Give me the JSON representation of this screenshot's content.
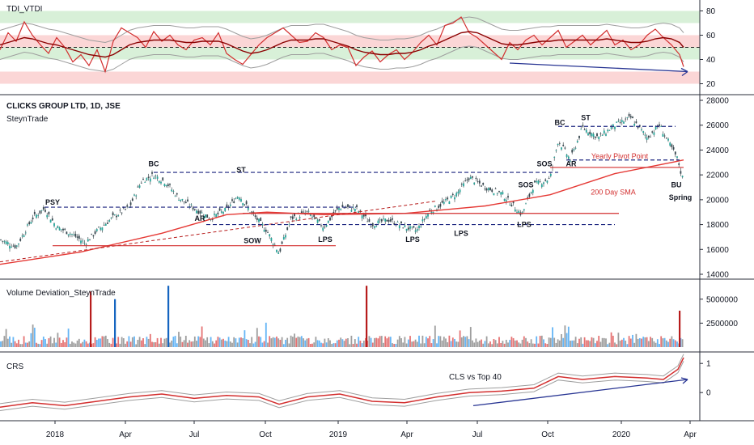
{
  "header": {
    "symbol_title": "CLICKS GROUP LTD, 1D, JSE",
    "author": "SteynTrade"
  },
  "chart_data": [
    {
      "type": "line",
      "title": "TDI_VTDI",
      "y_ticks": [
        "80",
        "60",
        "40",
        "20"
      ],
      "ylim": [
        15,
        85
      ],
      "bands": [
        {
          "range": [
            70,
            80
          ],
          "color": "#d8f0d8"
        },
        {
          "range": [
            50,
            60
          ],
          "color": "#fbd6d6"
        },
        {
          "range": [
            40,
            50
          ],
          "color": "#d8f0d8"
        },
        {
          "range": [
            20,
            30
          ],
          "color": "#fbd6d6"
        }
      ],
      "x": [
        0,
        10,
        20,
        30,
        40,
        50,
        60,
        70,
        80,
        90,
        100,
        110,
        120,
        130,
        140,
        150,
        160,
        170,
        180,
        190,
        200,
        210,
        220,
        230,
        240,
        250,
        260,
        270,
        280,
        290,
        300,
        310,
        320,
        330,
        340,
        350,
        360,
        370,
        380,
        390,
        400,
        410,
        420,
        430,
        440,
        450,
        460,
        470,
        480,
        490,
        500,
        510,
        520,
        530,
        540,
        550,
        560,
        570,
        580,
        590,
        600,
        610,
        620,
        630,
        640,
        650,
        660,
        670,
        680,
        690,
        700,
        710,
        720,
        730,
        740,
        750,
        760,
        770,
        780,
        790,
        800,
        810,
        820,
        830,
        840,
        845
      ],
      "series": [
        {
          "name": "rsi",
          "color": "#d32f2f",
          "values": [
            48,
            62,
            55,
            71,
            60,
            52,
            45,
            58,
            50,
            38,
            44,
            35,
            48,
            30,
            55,
            66,
            62,
            58,
            50,
            63,
            55,
            60,
            52,
            48,
            56,
            58,
            52,
            62,
            45,
            40,
            36,
            44,
            52,
            58,
            62,
            66,
            60,
            54,
            55,
            62,
            58,
            48,
            52,
            50,
            35,
            42,
            47,
            38,
            44,
            48,
            40,
            46,
            54,
            60,
            52,
            68,
            70,
            75,
            62,
            58,
            52,
            46,
            40,
            54,
            48,
            56,
            60,
            52,
            58,
            64,
            50,
            55,
            60,
            52,
            58,
            64,
            52,
            56,
            48,
            52,
            60,
            65,
            58,
            52,
            44,
            34
          ]
        },
        {
          "name": "signal",
          "color": "#8b0000",
          "values": [
            52,
            54,
            56,
            58,
            57,
            55,
            53,
            52,
            50,
            48,
            46,
            44,
            43,
            42,
            44,
            48,
            52,
            54,
            55,
            56,
            56,
            56,
            55,
            54,
            54,
            55,
            55,
            55,
            53,
            50,
            47,
            45,
            46,
            48,
            51,
            54,
            56,
            56,
            56,
            57,
            57,
            55,
            53,
            51,
            48,
            46,
            45,
            44,
            44,
            45,
            45,
            46,
            48,
            51,
            53,
            56,
            59,
            62,
            63,
            62,
            59,
            56,
            53,
            52,
            52,
            53,
            54,
            55,
            55,
            56,
            56,
            56,
            56,
            56,
            56,
            57,
            56,
            55,
            54,
            54,
            55,
            57,
            58,
            57,
            54,
            50
          ]
        }
      ],
      "divergence_arrow": {
        "from": [
          630,
          37
        ],
        "to": [
          850,
          30
        ]
      }
    },
    {
      "type": "candlestick",
      "title": "CLICKS GROUP LTD, 1D, JSE",
      "y_ticks": [
        "28000",
        "26000",
        "24000",
        "22000",
        "20000",
        "18000",
        "16000",
        "14000"
      ],
      "ylim": [
        14000,
        28000
      ],
      "close": [
        {
          "x": 0,
          "y": 16800
        },
        {
          "x": 20,
          "y": 16200
        },
        {
          "x": 40,
          "y": 18500
        },
        {
          "x": 55,
          "y": 19300
        },
        {
          "x": 70,
          "y": 17800
        },
        {
          "x": 90,
          "y": 17200
        },
        {
          "x": 105,
          "y": 16500
        },
        {
          "x": 120,
          "y": 17500
        },
        {
          "x": 140,
          "y": 18600
        },
        {
          "x": 160,
          "y": 19400
        },
        {
          "x": 175,
          "y": 21500
        },
        {
          "x": 190,
          "y": 22000
        },
        {
          "x": 205,
          "y": 21400
        },
        {
          "x": 220,
          "y": 20200
        },
        {
          "x": 240,
          "y": 19300
        },
        {
          "x": 260,
          "y": 18500
        },
        {
          "x": 280,
          "y": 19200
        },
        {
          "x": 295,
          "y": 20400
        },
        {
          "x": 310,
          "y": 19000
        },
        {
          "x": 330,
          "y": 17500
        },
        {
          "x": 345,
          "y": 15700
        },
        {
          "x": 360,
          "y": 18500
        },
        {
          "x": 380,
          "y": 19000
        },
        {
          "x": 400,
          "y": 17800
        },
        {
          "x": 420,
          "y": 19400
        },
        {
          "x": 440,
          "y": 19300
        },
        {
          "x": 460,
          "y": 18000
        },
        {
          "x": 480,
          "y": 18400
        },
        {
          "x": 500,
          "y": 17800
        },
        {
          "x": 515,
          "y": 17500
        },
        {
          "x": 530,
          "y": 19000
        },
        {
          "x": 550,
          "y": 19800
        },
        {
          "x": 565,
          "y": 20500
        },
        {
          "x": 580,
          "y": 21800
        },
        {
          "x": 600,
          "y": 21000
        },
        {
          "x": 620,
          "y": 20500
        },
        {
          "x": 645,
          "y": 18800
        },
        {
          "x": 660,
          "y": 21200
        },
        {
          "x": 680,
          "y": 21700
        },
        {
          "x": 690,
          "y": 24800
        },
        {
          "x": 705,
          "y": 23200
        },
        {
          "x": 720,
          "y": 25800
        },
        {
          "x": 740,
          "y": 25000
        },
        {
          "x": 760,
          "y": 26000
        },
        {
          "x": 780,
          "y": 26600
        },
        {
          "x": 800,
          "y": 25000
        },
        {
          "x": 815,
          "y": 26000
        },
        {
          "x": 830,
          "y": 24200
        },
        {
          "x": 838,
          "y": 23200
        },
        {
          "x": 843,
          "y": 21800
        }
      ],
      "sma200": [
        {
          "x": 0,
          "y": 14800
        },
        {
          "x": 100,
          "y": 15800
        },
        {
          "x": 200,
          "y": 17300
        },
        {
          "x": 280,
          "y": 18800
        },
        {
          "x": 330,
          "y": 19000
        },
        {
          "x": 400,
          "y": 18800
        },
        {
          "x": 500,
          "y": 18900
        },
        {
          "x": 600,
          "y": 19500
        },
        {
          "x": 680,
          "y": 20400
        },
        {
          "x": 760,
          "y": 22100
        },
        {
          "x": 830,
          "y": 23000
        },
        {
          "x": 845,
          "y": 23200
        }
      ],
      "dashed_trend": [
        {
          "x": 0,
          "y": 15000
        },
        {
          "x": 540,
          "y": 19900
        }
      ],
      "hlines": [
        {
          "y": 22200,
          "x1": 190,
          "x2": 690,
          "style": "dashed",
          "color": "#1a237e"
        },
        {
          "y": 19400,
          "x1": 55,
          "x2": 440,
          "style": "dashed",
          "color": "#1a237e"
        },
        {
          "y": 18000,
          "x1": 255,
          "x2": 760,
          "style": "dashed",
          "color": "#1a237e"
        },
        {
          "y": 16300,
          "x1": 65,
          "x2": 415,
          "style": "solid",
          "color": "#d32f2f"
        },
        {
          "y": 18900,
          "x1": 300,
          "x2": 765,
          "style": "solid",
          "color": "#d32f2f"
        },
        {
          "y": 25900,
          "x1": 690,
          "x2": 835,
          "style": "dashed",
          "color": "#1a237e"
        },
        {
          "y": 23200,
          "x1": 700,
          "x2": 840,
          "style": "dashed",
          "color": "#1a237e"
        },
        {
          "y": 22600,
          "x1": 680,
          "x2": 845,
          "style": "solid",
          "color": "#d32f2f"
        }
      ],
      "annotations": [
        {
          "text": "PSY",
          "x": 65,
          "y": 19600,
          "color": "#131722"
        },
        {
          "text": "BC",
          "x": 190,
          "y": 22700,
          "color": "#131722"
        },
        {
          "text": "ST",
          "x": 298,
          "y": 22200,
          "color": "#131722"
        },
        {
          "text": "AR",
          "x": 247,
          "y": 18300,
          "color": "#131722"
        },
        {
          "text": "SOW",
          "x": 312,
          "y": 16500,
          "color": "#131722"
        },
        {
          "text": "LPS",
          "x": 402,
          "y": 16600,
          "color": "#131722"
        },
        {
          "text": "LPS",
          "x": 510,
          "y": 16600,
          "color": "#131722"
        },
        {
          "text": "LPS",
          "x": 570,
          "y": 17100,
          "color": "#131722"
        },
        {
          "text": "LPS",
          "x": 648,
          "y": 17800,
          "color": "#131722"
        },
        {
          "text": "SOS",
          "x": 650,
          "y": 21000,
          "color": "#131722"
        },
        {
          "text": "SOS",
          "x": 673,
          "y": 22700,
          "color": "#131722"
        },
        {
          "text": "BC",
          "x": 692,
          "y": 26000,
          "color": "#131722"
        },
        {
          "text": "ST",
          "x": 724,
          "y": 26400,
          "color": "#131722"
        },
        {
          "text": "AR",
          "x": 706,
          "y": 22700,
          "color": "#131722"
        },
        {
          "text": "Yearly Pivot Point",
          "x": 766,
          "y": 23300,
          "color": "#d32f2f"
        },
        {
          "text": "200 Day SMA",
          "x": 758,
          "y": 20400,
          "color": "#d32f2f"
        },
        {
          "text": "BU",
          "x": 836,
          "y": 21000,
          "color": "#131722"
        },
        {
          "text": "Spring",
          "x": 841,
          "y": 20000,
          "color": "#131722"
        }
      ]
    },
    {
      "type": "bar",
      "title": "Volume Deviation_SteynTrade",
      "y_ticks": [
        "5000000",
        "2500000"
      ],
      "ylim": [
        0,
        6500000
      ],
      "spikes": [
        {
          "x": 112,
          "value": 5800000,
          "color": "#b71c1c"
        },
        {
          "x": 142,
          "value": 5000000,
          "color": "#1565c0"
        },
        {
          "x": 208,
          "value": 6400000,
          "color": "#1565c0"
        },
        {
          "x": 453,
          "value": 6400000,
          "color": "#b71c1c"
        },
        {
          "x": 840,
          "value": 3800000,
          "color": "#b71c1c"
        }
      ]
    },
    {
      "type": "line",
      "title": "CRS",
      "y_ticks": [
        "1",
        "0"
      ],
      "ylim": [
        -0.8,
        1.2
      ],
      "series": [
        {
          "name": "crs",
          "color": "#d32f2f",
          "values": [
            {
              "x": 0,
              "y": -0.5
            },
            {
              "x": 40,
              "y": -0.35
            },
            {
              "x": 80,
              "y": -0.45
            },
            {
              "x": 120,
              "y": -0.3
            },
            {
              "x": 160,
              "y": -0.15
            },
            {
              "x": 200,
              "y": -0.05
            },
            {
              "x": 240,
              "y": -0.2
            },
            {
              "x": 280,
              "y": -0.1
            },
            {
              "x": 320,
              "y": -0.15
            },
            {
              "x": 345,
              "y": -0.4
            },
            {
              "x": 380,
              "y": -0.15
            },
            {
              "x": 420,
              "y": -0.05
            },
            {
              "x": 460,
              "y": -0.3
            },
            {
              "x": 500,
              "y": -0.35
            },
            {
              "x": 540,
              "y": -0.15
            },
            {
              "x": 580,
              "y": 0.0
            },
            {
              "x": 620,
              "y": 0.05
            },
            {
              "x": 660,
              "y": 0.15
            },
            {
              "x": 690,
              "y": 0.55
            },
            {
              "x": 720,
              "y": 0.45
            },
            {
              "x": 760,
              "y": 0.55
            },
            {
              "x": 800,
              "y": 0.5
            },
            {
              "x": 820,
              "y": 0.45
            },
            {
              "x": 838,
              "y": 0.8
            },
            {
              "x": 845,
              "y": 1.2
            }
          ]
        },
        {
          "name": "trend",
          "color": "#1a237e",
          "values": [
            {
              "x": 585,
              "y": -0.45
            },
            {
              "x": 850,
              "y": 0.45
            }
          ]
        }
      ],
      "annotations": [
        {
          "text": "CLS vs Top 40",
          "x": 555,
          "y": 0.45
        }
      ]
    }
  ],
  "x_axis": {
    "labels": [
      {
        "text": "2018",
        "x": 68
      },
      {
        "text": "Apr",
        "x": 155
      },
      {
        "text": "Jul",
        "x": 240
      },
      {
        "text": "Oct",
        "x": 328
      },
      {
        "text": "2019",
        "x": 418
      },
      {
        "text": "Apr",
        "x": 503
      },
      {
        "text": "Jul",
        "x": 590
      },
      {
        "text": "Oct",
        "x": 677
      },
      {
        "text": "2020",
        "x": 768
      },
      {
        "text": "Apr",
        "x": 853
      }
    ]
  }
}
